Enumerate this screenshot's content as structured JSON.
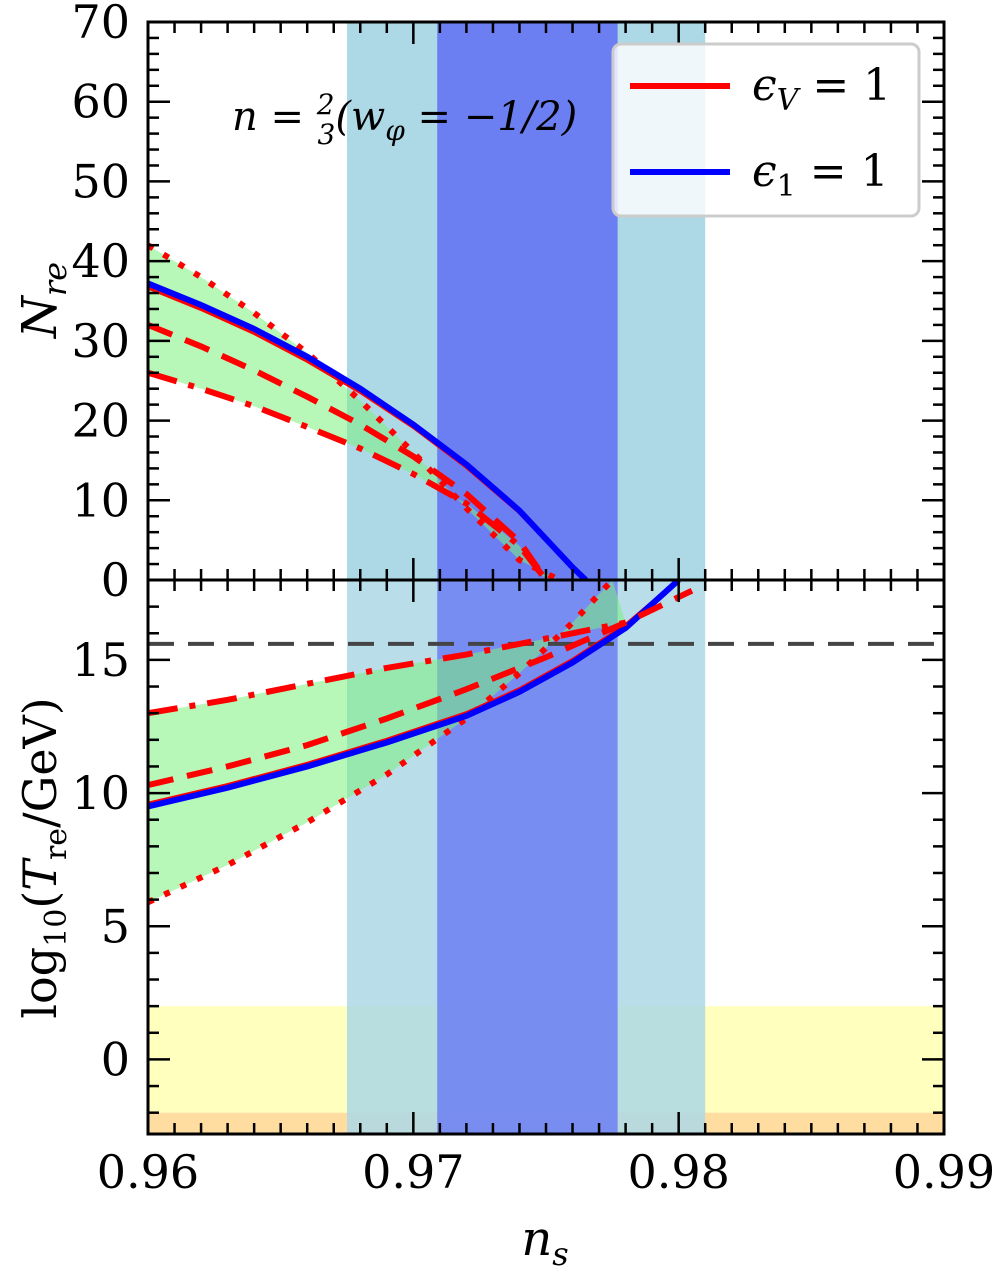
{
  "chart_data": [
    {
      "type": "line",
      "panel": "top",
      "ylabel": "N_re",
      "xlim": [
        0.96,
        0.99
      ],
      "ylim": [
        0,
        70
      ],
      "yticks": [
        "0",
        "10",
        "20",
        "30",
        "40",
        "50",
        "60",
        "70"
      ],
      "annotation": "n = 2/3 (w_φ = -1/2)",
      "legend": {
        "placement": "top-right",
        "entries": [
          {
            "label": "ϵ_V = 1",
            "color": "#ff0000"
          },
          {
            "label": "ϵ_1 = 1",
            "color": "#0000ff"
          }
        ]
      },
      "bands": [
        {
          "name": "wide",
          "x": [
            0.9675,
            0.981
          ],
          "color": "#add8e6"
        },
        {
          "name": "narrow",
          "x": [
            0.9709,
            0.9777
          ],
          "color": "#6c7ff2"
        }
      ],
      "series": [
        {
          "style": "dotted",
          "color": "#ff0000",
          "x": [
            0.96,
            0.962,
            0.964,
            0.966,
            0.968,
            0.97,
            0.972,
            0.974,
            0.9755
          ],
          "y": [
            42.0,
            38.0,
            33.5,
            28.5,
            22.5,
            16.0,
            9.0,
            2.5,
            0
          ]
        },
        {
          "style": "solid",
          "color": "#ff0000",
          "x": [
            0.96,
            0.962,
            0.964,
            0.966,
            0.968,
            0.97,
            0.972,
            0.974,
            0.976,
            0.9765
          ],
          "y": [
            36.7,
            34.0,
            31.0,
            27.5,
            23.6,
            19.2,
            14.2,
            8.5,
            1.5,
            0
          ]
        },
        {
          "style": "solid",
          "color": "#0000ff",
          "x": [
            0.96,
            0.962,
            0.964,
            0.966,
            0.968,
            0.97,
            0.972,
            0.974,
            0.976,
            0.9765
          ],
          "y": [
            37.2,
            34.5,
            31.5,
            28.0,
            24.0,
            19.5,
            14.5,
            8.7,
            1.6,
            0
          ]
        },
        {
          "style": "dashed",
          "color": "#ff0000",
          "x": [
            0.96,
            0.962,
            0.964,
            0.966,
            0.968,
            0.97,
            0.972,
            0.974,
            0.975
          ],
          "y": [
            32.0,
            29.3,
            26.3,
            23.0,
            19.5,
            15.5,
            10.8,
            4.8,
            0
          ]
        },
        {
          "style": "dashdot",
          "color": "#ff0000",
          "x": [
            0.96,
            0.962,
            0.964,
            0.966,
            0.968,
            0.97,
            0.972,
            0.974,
            0.975
          ],
          "y": [
            26.0,
            24.0,
            21.8,
            19.2,
            16.5,
            13.3,
            9.6,
            4.3,
            0
          ]
        }
      ]
    },
    {
      "type": "line",
      "panel": "bottom",
      "xlabel": "n_s",
      "ylabel": "log10(T_re/GeV)",
      "xlim": [
        0.96,
        0.99
      ],
      "ylim": [
        -2.8,
        18
      ],
      "xticks": [
        "0.96",
        "0.97",
        "0.98",
        "0.99"
      ],
      "yticks": [
        "0",
        "5",
        "10",
        "15"
      ],
      "hlines": [
        {
          "y": 15.6,
          "style": "dashed",
          "color": "#444444"
        }
      ],
      "bands": [
        {
          "name": "wide",
          "x": [
            0.9675,
            0.981
          ],
          "color": "#add8e6"
        },
        {
          "name": "narrow",
          "x": [
            0.9709,
            0.9777
          ],
          "color": "#6c7ff2"
        },
        {
          "name": "yellow",
          "y": [
            -2,
            2
          ],
          "color": "#ffffa8"
        },
        {
          "name": "orange",
          "y": [
            -2.8,
            -2
          ],
          "color": "#ffd280"
        }
      ],
      "series": [
        {
          "style": "dotted",
          "color": "#ff0000",
          "x": [
            0.96,
            0.963,
            0.966,
            0.969,
            0.972,
            0.974,
            0.976,
            0.9775
          ],
          "y": [
            5.9,
            7.3,
            8.9,
            10.7,
            12.8,
            14.5,
            16.4,
            18.0
          ]
        },
        {
          "style": "solid",
          "color": "#ff0000",
          "x": [
            0.96,
            0.963,
            0.966,
            0.969,
            0.972,
            0.974,
            0.976,
            0.978,
            0.98
          ],
          "y": [
            9.6,
            10.3,
            11.1,
            12.0,
            13.0,
            13.9,
            15.0,
            16.3,
            18.0
          ]
        },
        {
          "style": "solid",
          "color": "#0000ff",
          "x": [
            0.96,
            0.963,
            0.966,
            0.969,
            0.972,
            0.974,
            0.976,
            0.978,
            0.98
          ],
          "y": [
            9.5,
            10.2,
            11.0,
            11.9,
            12.9,
            13.8,
            14.9,
            16.2,
            18.0
          ]
        },
        {
          "style": "dashed",
          "color": "#ff0000",
          "x": [
            0.96,
            0.963,
            0.966,
            0.969,
            0.972,
            0.975,
            0.978,
            0.9805
          ],
          "y": [
            10.3,
            11.0,
            11.8,
            12.8,
            13.9,
            15.1,
            16.4,
            17.6
          ]
        },
        {
          "style": "dashdot",
          "color": "#ff0000",
          "x": [
            0.96,
            0.963,
            0.966,
            0.969,
            0.972,
            0.975,
            0.978
          ],
          "y": [
            13.0,
            13.5,
            14.1,
            14.7,
            15.2,
            15.8,
            16.4
          ]
        }
      ]
    }
  ]
}
